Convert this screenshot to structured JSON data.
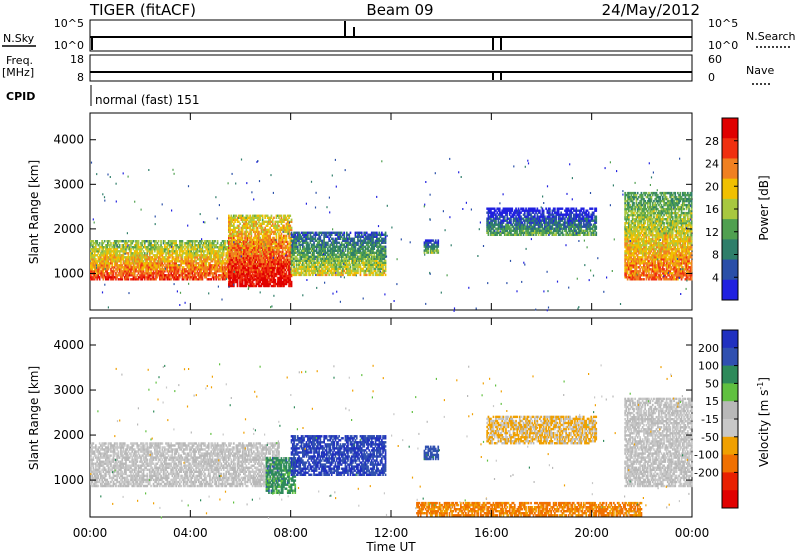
{
  "header": {
    "radar": "TIGER (fitACF)",
    "beam": "Beam 09",
    "date": "24/May/2012"
  },
  "status": {
    "nsky_label": "N.Sky",
    "nsky_ticks": [
      "10^5",
      "10^0"
    ],
    "nsearch_label": "N.Search",
    "nsearch_ticks": [
      "10^5",
      "10^0"
    ],
    "freq_label": "Freq.",
    "freq_unit": "[MHz]",
    "freq_ticks": [
      "18",
      "8"
    ],
    "nave_label": "Nave",
    "nave_ticks": [
      "60",
      "0"
    ],
    "cpid_label": "CPID",
    "cpid_value": "normal (fast) 151"
  },
  "colors": {
    "power": [
      "#2020e0",
      "#2a4fa8",
      "#2f7e6a",
      "#50a050",
      "#a8c840",
      "#f0c000",
      "#f08020",
      "#f03010",
      "#e00000"
    ],
    "velocity": [
      "#2030c0",
      "#3050b0",
      "#2e8a5a",
      "#60c040",
      "#b8b8b8",
      "#c8c8c8",
      "#f0a000",
      "#f07000",
      "#e82000",
      "#e00000"
    ]
  },
  "chart_data": [
    {
      "type": "heatmap",
      "name": "power",
      "ylabel": "Slant Range [km]",
      "yticks": [
        1000,
        2000,
        3000,
        4000
      ],
      "ylim": [
        180,
        4600
      ],
      "xlim": [
        0,
        24
      ],
      "colorbar": {
        "label": "Power [dB]",
        "ticks": [
          4,
          8,
          12,
          16,
          20,
          24,
          28
        ],
        "range": [
          0,
          32
        ]
      },
      "features": [
        {
          "t0": 0.0,
          "t1": 7.3,
          "r_low": 850,
          "r_high": 1750,
          "value": 20
        },
        {
          "t0": 5.5,
          "t1": 8.0,
          "r_low": 700,
          "r_high": 2300,
          "value": 24
        },
        {
          "t0": 8.0,
          "t1": 11.8,
          "r_low": 950,
          "r_high": 1900,
          "value": 12
        },
        {
          "t0": 13.3,
          "t1": 13.9,
          "r_low": 1450,
          "r_high": 1750,
          "value": 8
        },
        {
          "t0": 15.8,
          "t1": 20.2,
          "r_low": 1850,
          "r_high": 2450,
          "value": 6
        },
        {
          "t0": 21.3,
          "t1": 24.0,
          "r_low": 850,
          "r_high": 2800,
          "value": 18
        }
      ]
    },
    {
      "type": "heatmap",
      "name": "velocity",
      "ylabel": "Slant Range [km]",
      "yticks": [
        1000,
        2000,
        3000,
        4000
      ],
      "ylim": [
        180,
        4600
      ],
      "xlim": [
        0,
        24
      ],
      "xlabel": "Time UT",
      "xticks": [
        "00:00",
        "04:00",
        "08:00",
        "12:00",
        "16:00",
        "20:00",
        "00:00"
      ],
      "colorbar": {
        "label": "Velocity [m s",
        "ticks": [
          "200",
          "100",
          "50",
          "15",
          "-15",
          "-50",
          "-100",
          "-200"
        ]
      },
      "features": [
        {
          "t0": 0.0,
          "t1": 7.5,
          "r_low": 850,
          "r_high": 1800,
          "value": 0
        },
        {
          "t0": 7.0,
          "t1": 8.2,
          "r_low": 700,
          "r_high": 1500,
          "value": 50
        },
        {
          "t0": 8.0,
          "t1": 11.8,
          "r_low": 1100,
          "r_high": 2000,
          "value": 150
        },
        {
          "t0": 13.3,
          "t1": 13.9,
          "r_low": 1450,
          "r_high": 1750,
          "value": 100
        },
        {
          "t0": 15.8,
          "t1": 20.2,
          "r_low": 1800,
          "r_high": 2400,
          "value": -20
        },
        {
          "t0": 13.0,
          "t1": 22.0,
          "r_low": 200,
          "r_high": 500,
          "value": -60
        },
        {
          "t0": 21.3,
          "t1": 24.0,
          "r_low": 850,
          "r_high": 2800,
          "value": 0
        }
      ]
    }
  ]
}
